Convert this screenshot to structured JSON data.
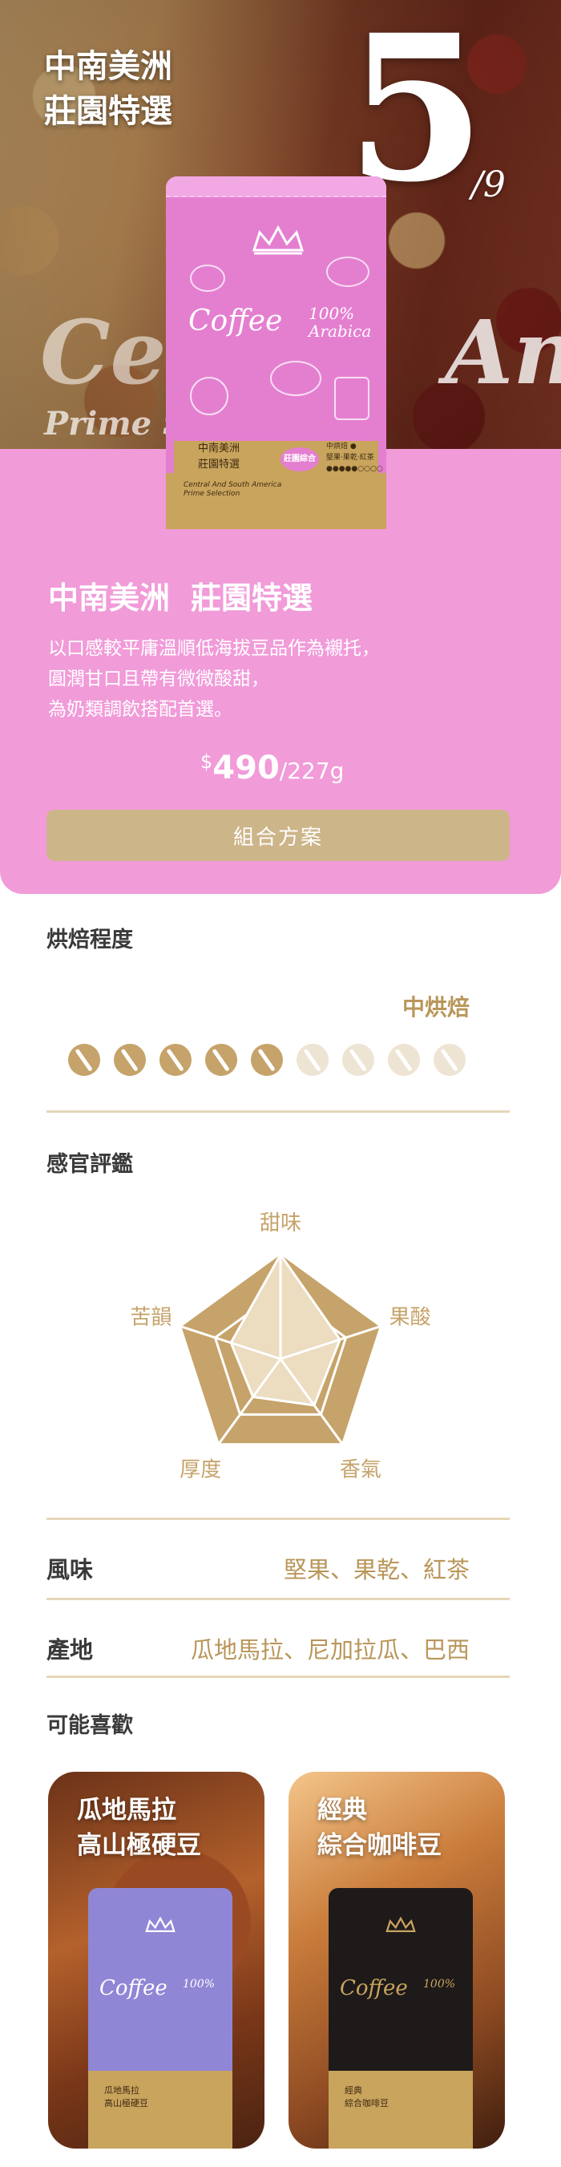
{
  "hero": {
    "title_line1": "中南美洲",
    "title_line2": "莊園特選",
    "index": "5",
    "total": "/9",
    "ghost_left": "Ce",
    "ghost_right": "An",
    "ghost_sub": "Prime S"
  },
  "bag": {
    "coffee": "Coffee",
    "arabica": "100%\nArabica",
    "label_line1": "中南美洲",
    "label_line2": "莊園特選",
    "label_sub": "Central And South America\nPrime Selection",
    "badge": "莊園綜合"
  },
  "product": {
    "title_part1": "中南美洲",
    "title_part2": "莊園特選",
    "desc_line1": "以口感較平庸溫順低海拔豆品作為襯托，",
    "desc_line2": "圓潤甘口且帶有微微酸甜，",
    "desc_line3": "為奶類調飲搭配首選。",
    "currency": "$",
    "price": "490",
    "unit": "/227g",
    "combo_button": "組合方案",
    "colors": {
      "panel": "#f19bd9",
      "accent": "#b9965a",
      "button": "#cdb58a"
    }
  },
  "roast": {
    "heading": "烘焙程度",
    "value": "中烘焙",
    "level": 5,
    "max": 9
  },
  "sensory": {
    "heading": "感官評鑑",
    "axes": [
      "甜味",
      "果酸",
      "香氣",
      "厚度",
      "苦韻"
    ],
    "scores": [
      1.0,
      0.6,
      0.55,
      0.45,
      0.5
    ]
  },
  "details": {
    "flavor_label": "風味",
    "flavor_value": "堅果、果乾、紅茶",
    "origin_label": "產地",
    "origin_value": "瓜地馬拉、尼加拉瓜、巴西"
  },
  "recommend": {
    "heading": "可能喜歡",
    "items": [
      {
        "title_line1": "瓜地馬拉",
        "title_line2": "高山極硬豆",
        "label_line1": "瓜地馬拉",
        "label_line2": "高山極硬豆",
        "bag_color": "#8f86d6"
      },
      {
        "title_line1": "經典",
        "title_line2": "綜合咖啡豆",
        "label_line1": "經典",
        "label_line2": "綜合咖啡豆",
        "bag_color": "#1e1a1a"
      }
    ],
    "coffee": "Coffee",
    "arabica": "100%"
  }
}
